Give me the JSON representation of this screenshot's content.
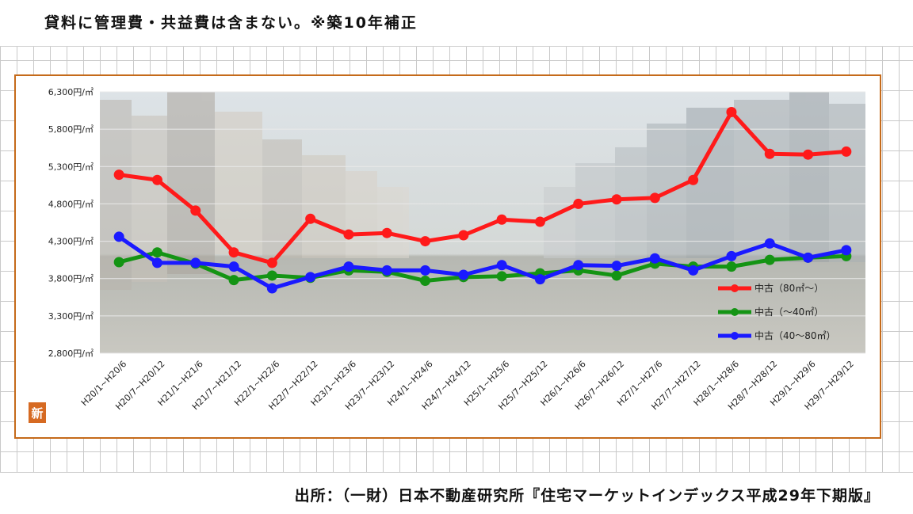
{
  "note": "貸料に管理費・共益費は含まない。※築10年補正",
  "source": "出所：（一財）日本不動産研究所『住宅マーケットインデックス平成29年下期版』",
  "logo_char": "新",
  "chart_data": {
    "type": "line",
    "categories": [
      "H20/1~H20/6",
      "H20/7~H20/12",
      "H21/1~H21/6",
      "H21/7~H21/12",
      "H22/1~H22/6",
      "H22/7~H22/12",
      "H23/1~H23/6",
      "H23/7~H23/12",
      "H24/1~H24/6",
      "H24/7~H24/12",
      "H25/1~H25/6",
      "H25/7~H25/12",
      "H26/1~H26/6",
      "H26/7~H26/12",
      "H27/1~H27/6",
      "H27/7~H27/12",
      "H28/1~H28/6",
      "H28/7~H28/12",
      "H29/1~H29/6",
      "H29/7~H29/12"
    ],
    "ylim": [
      2800,
      6300
    ],
    "yticks": [
      "6,300円/㎡",
      "5,800円/㎡",
      "5,300円/㎡",
      "4,800円/㎡",
      "4,300円/㎡",
      "3,800円/㎡",
      "3,300円/㎡",
      "2,800円/㎡"
    ],
    "ytick_values": [
      6300,
      5800,
      5300,
      4800,
      4300,
      3800,
      3300,
      2800
    ],
    "grid": true,
    "legend_position": "bottom-right",
    "series": [
      {
        "name": "中古（80㎡～）",
        "color": "#ff1a1a",
        "values": [
          5190,
          5120,
          4710,
          4150,
          4010,
          4600,
          4390,
          4410,
          4300,
          4380,
          4590,
          4560,
          4800,
          4860,
          4880,
          5120,
          6030,
          5470,
          5460,
          5500
        ]
      },
      {
        "name": "中古（～40㎡）",
        "color": "#149414",
        "values": [
          4020,
          4150,
          4000,
          3780,
          3840,
          3810,
          3910,
          3890,
          3770,
          3820,
          3830,
          3870,
          3910,
          3840,
          4000,
          3960,
          3960,
          4050,
          4080,
          4100
        ]
      },
      {
        "name": "中古（40～80㎡）",
        "color": "#1a1aff",
        "values": [
          4360,
          4010,
          4010,
          3960,
          3670,
          3820,
          3960,
          3910,
          3910,
          3850,
          3980,
          3790,
          3980,
          3970,
          4070,
          3910,
          4100,
          4270,
          4080,
          4180
        ]
      }
    ]
  }
}
